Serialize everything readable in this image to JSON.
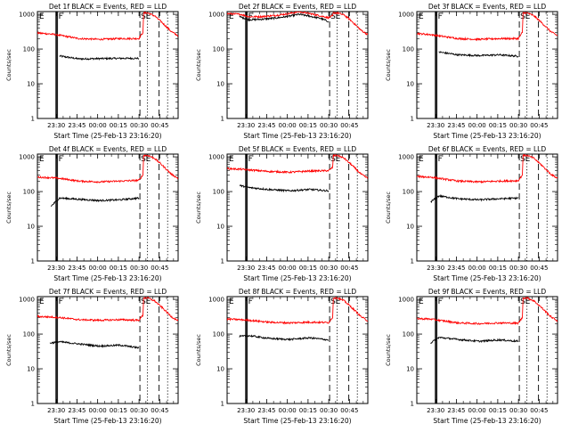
{
  "window": {
    "background": "#ffffff"
  },
  "colors": {
    "events": "#000000",
    "lld": "#ff0000",
    "axis": "#000000"
  },
  "common": {
    "ylabel": "Counts/sec",
    "xlabel": "Start Time (25-Feb-13 23:16:20)",
    "x_tick_labels": [
      "23:30",
      "23:45",
      "00:00",
      "00:15",
      "00:30",
      "00:45"
    ],
    "y_tick_labels": [
      "1",
      "10",
      "100",
      "1000"
    ],
    "marker_labels": [
      "E",
      "F",
      "S",
      "E"
    ]
  },
  "chart_data": [
    {
      "type": "line",
      "title": "Det 1f BLACK = Events, RED = LLD",
      "xlabel": "Start Time (25-Feb-13 23:16:20)",
      "ylabel": "Counts/sec",
      "x_unit": "minutes after 23:16:20",
      "x_ticks_minutes": [
        13.67,
        28.67,
        43.67,
        58.67,
        73.67,
        88.67
      ],
      "xlim_minutes": [
        0,
        102
      ],
      "yscale": "log",
      "ylim": [
        1,
        1200
      ],
      "series": [
        {
          "name": "Events",
          "color": "#000000",
          "x": [
            16,
            30,
            45,
            60,
            73.5
          ],
          "y": [
            63,
            52,
            53,
            54,
            54
          ]
        },
        {
          "name": "LLD",
          "color": "#ff0000",
          "x": [
            0,
            10,
            16,
            30,
            45,
            60,
            73.5,
            76.5,
            77,
            80,
            85,
            90,
            94,
            97,
            102
          ],
          "y": [
            290,
            270,
            250,
            200,
            190,
            200,
            200,
            300,
            1100,
            1100,
            900,
            600,
            420,
            320,
            240
          ]
        }
      ],
      "vlines_solid": [
        13.4,
        14.0,
        14.6
      ],
      "vlines_dashed": [
        74.3,
        88.2
      ],
      "vlines_dotted": [
        79.8,
        94.4
      ]
    },
    {
      "type": "line",
      "title": "Det 2f BLACK = Events, RED = LLD",
      "xlabel": "Start Time (25-Feb-13 23:16:20)",
      "ylabel": "Counts/sec",
      "x_unit": "minutes after 23:16:20",
      "x_ticks_minutes": [
        13.67,
        28.67,
        43.67,
        58.67,
        73.67,
        88.67
      ],
      "xlim_minutes": [
        0,
        102
      ],
      "yscale": "log",
      "ylim": [
        1,
        1200
      ],
      "series": [
        {
          "name": "Events",
          "color": "#000000",
          "x": [
            9,
            16,
            25,
            35,
            45,
            52,
            60,
            68,
            73.5
          ],
          "y": [
            850,
            700,
            720,
            780,
            880,
            1000,
            880,
            760,
            620
          ]
        },
        {
          "name": "LLD",
          "color": "#ff0000",
          "x": [
            0,
            10,
            16,
            25,
            35,
            45,
            52,
            60,
            68,
            73.5,
            76.5,
            77,
            80,
            85,
            90,
            94,
            97,
            102
          ],
          "y": [
            1050,
            1000,
            850,
            860,
            930,
            1050,
            1200,
            1050,
            900,
            800,
            900,
            1100,
            1100,
            950,
            650,
            460,
            350,
            260
          ]
        }
      ],
      "vlines_solid": [
        13.4,
        14.0,
        14.6
      ],
      "vlines_dashed": [
        74.3,
        88.2
      ],
      "vlines_dotted": [
        79.8,
        94.4
      ]
    },
    {
      "type": "line",
      "title": "Det 3f BLACK = Events, RED = LLD",
      "xlabel": "Start Time (25-Feb-13 23:16:20)",
      "ylabel": "Counts/sec",
      "x_unit": "minutes after 23:16:20",
      "x_ticks_minutes": [
        13.67,
        28.67,
        43.67,
        58.67,
        73.67,
        88.67
      ],
      "xlim_minutes": [
        0,
        102
      ],
      "yscale": "log",
      "ylim": [
        1,
        1200
      ],
      "series": [
        {
          "name": "Events",
          "color": "#000000",
          "x": [
            16,
            30,
            45,
            60,
            73.5
          ],
          "y": [
            82,
            68,
            65,
            68,
            62
          ]
        },
        {
          "name": "LLD",
          "color": "#ff0000",
          "x": [
            0,
            10,
            16,
            30,
            45,
            60,
            73.5,
            76.5,
            77,
            80,
            85,
            90,
            94,
            97,
            102
          ],
          "y": [
            280,
            260,
            240,
            200,
            190,
            200,
            200,
            300,
            1100,
            1100,
            900,
            600,
            420,
            320,
            240
          ]
        }
      ],
      "vlines_solid": [
        13.4,
        14.0,
        14.6
      ],
      "vlines_dashed": [
        74.3,
        88.2
      ],
      "vlines_dotted": [
        79.8,
        94.4
      ]
    },
    {
      "type": "line",
      "title": "Det 4f BLACK = Events, RED = LLD",
      "xlabel": "Start Time (25-Feb-13 23:16:20)",
      "ylabel": "Counts/sec",
      "x_unit": "minutes after 23:16:20",
      "x_ticks_minutes": [
        13.67,
        28.67,
        43.67,
        58.67,
        73.67,
        88.67
      ],
      "xlim_minutes": [
        0,
        102
      ],
      "yscale": "log",
      "ylim": [
        1,
        1200
      ],
      "series": [
        {
          "name": "Events",
          "color": "#000000",
          "x": [
            10,
            16,
            30,
            45,
            60,
            73.5
          ],
          "y": [
            38,
            65,
            60,
            55,
            58,
            65
          ]
        },
        {
          "name": "LLD",
          "color": "#ff0000",
          "x": [
            0,
            10,
            16,
            30,
            45,
            60,
            73.5,
            76.5,
            77,
            80,
            85,
            90,
            94,
            97,
            102
          ],
          "y": [
            260,
            250,
            240,
            200,
            190,
            200,
            210,
            300,
            1100,
            1100,
            900,
            600,
            420,
            320,
            240
          ]
        }
      ],
      "vlines_solid": [
        13.4,
        14.0,
        14.6
      ],
      "vlines_dashed": [
        74.3,
        88.2
      ],
      "vlines_dotted": [
        79.8,
        94.4
      ]
    },
    {
      "type": "line",
      "title": "Det 5f BLACK = Events, RED = LLD",
      "xlabel": "Start Time (25-Feb-13 23:16:20)",
      "ylabel": "Counts/sec",
      "x_unit": "minutes after 23:16:20",
      "x_ticks_minutes": [
        13.67,
        28.67,
        43.67,
        58.67,
        73.67,
        88.67
      ],
      "xlim_minutes": [
        0,
        102
      ],
      "yscale": "log",
      "ylim": [
        1,
        1200
      ],
      "series": [
        {
          "name": "Events",
          "color": "#000000",
          "x": [
            9,
            16,
            30,
            45,
            60,
            73.5
          ],
          "y": [
            150,
            130,
            115,
            105,
            115,
            105
          ]
        },
        {
          "name": "LLD",
          "color": "#ff0000",
          "x": [
            0,
            10,
            16,
            30,
            45,
            60,
            73.5,
            76.5,
            77,
            80,
            85,
            90,
            94,
            97,
            102
          ],
          "y": [
            460,
            440,
            420,
            380,
            360,
            390,
            400,
            500,
            1100,
            1100,
            900,
            600,
            420,
            320,
            240
          ]
        }
      ],
      "vlines_solid": [
        13.4,
        14.0,
        14.6
      ],
      "vlines_dashed": [
        74.3,
        88.2
      ],
      "vlines_dotted": [
        79.8,
        94.4
      ]
    },
    {
      "type": "line",
      "title": "Det 6f BLACK = Events, RED = LLD",
      "xlabel": "Start Time (25-Feb-13 23:16:20)",
      "ylabel": "Counts/sec",
      "x_unit": "minutes after 23:16:20",
      "x_ticks_minutes": [
        13.67,
        28.67,
        43.67,
        58.67,
        73.67,
        88.67
      ],
      "xlim_minutes": [
        0,
        102
      ],
      "yscale": "log",
      "ylim": [
        1,
        1200
      ],
      "series": [
        {
          "name": "Events",
          "color": "#000000",
          "x": [
            10,
            16,
            30,
            45,
            60,
            73.5
          ],
          "y": [
            50,
            75,
            62,
            58,
            62,
            65
          ]
        },
        {
          "name": "LLD",
          "color": "#ff0000",
          "x": [
            0,
            10,
            16,
            30,
            45,
            60,
            73.5,
            76.5,
            77,
            80,
            85,
            90,
            94,
            97,
            102
          ],
          "y": [
            270,
            260,
            240,
            200,
            190,
            200,
            205,
            300,
            1100,
            1100,
            900,
            600,
            420,
            320,
            240
          ]
        }
      ],
      "vlines_solid": [
        13.4,
        14.0,
        14.6
      ],
      "vlines_dashed": [
        74.3,
        88.2
      ],
      "vlines_dotted": [
        79.8,
        94.4
      ]
    },
    {
      "type": "line",
      "title": "Det 7f BLACK = Events, RED = LLD",
      "xlabel": "Start Time (25-Feb-13 23:16:20)",
      "ylabel": "Counts/sec",
      "x_unit": "minutes after 23:16:20",
      "x_ticks_minutes": [
        13.67,
        28.67,
        43.67,
        58.67,
        73.67,
        88.67
      ],
      "xlim_minutes": [
        0,
        102
      ],
      "yscale": "log",
      "ylim": [
        1,
        1200
      ],
      "series": [
        {
          "name": "Events",
          "color": "#000000",
          "x": [
            9,
            16,
            30,
            45,
            60,
            73.5
          ],
          "y": [
            55,
            60,
            52,
            45,
            48,
            40
          ]
        },
        {
          "name": "LLD",
          "color": "#ff0000",
          "x": [
            0,
            10,
            16,
            30,
            45,
            60,
            73.5,
            76.5,
            77,
            80,
            85,
            90,
            94,
            97,
            102
          ],
          "y": [
            320,
            310,
            300,
            260,
            250,
            260,
            250,
            350,
            1100,
            1100,
            900,
            600,
            420,
            320,
            240
          ]
        }
      ],
      "vlines_solid": [
        13.4,
        14.0,
        14.6
      ],
      "vlines_dashed": [
        74.3,
        88.2
      ],
      "vlines_dotted": [
        79.8,
        94.4
      ]
    },
    {
      "type": "line",
      "title": "Det 8f BLACK = Events, RED = LLD",
      "xlabel": "Start Time (25-Feb-13 23:16:20)",
      "ylabel": "Counts/sec",
      "x_unit": "minutes after 23:16:20",
      "x_ticks_minutes": [
        13.67,
        28.67,
        43.67,
        58.67,
        73.67,
        88.67
      ],
      "xlim_minutes": [
        0,
        102
      ],
      "yscale": "log",
      "ylim": [
        1,
        1200
      ],
      "series": [
        {
          "name": "Events",
          "color": "#000000",
          "x": [
            9,
            16,
            30,
            45,
            60,
            73.5
          ],
          "y": [
            85,
            90,
            75,
            70,
            78,
            68
          ]
        },
        {
          "name": "LLD",
          "color": "#ff0000",
          "x": [
            0,
            10,
            16,
            30,
            45,
            60,
            73.5,
            76.5,
            77,
            80,
            85,
            90,
            94,
            97,
            102
          ],
          "y": [
            270,
            260,
            250,
            220,
            210,
            220,
            215,
            300,
            1100,
            1100,
            900,
            600,
            420,
            320,
            240
          ]
        }
      ],
      "vlines_solid": [
        13.4,
        14.0,
        14.6
      ],
      "vlines_dashed": [
        74.3,
        88.2
      ],
      "vlines_dotted": [
        79.8,
        94.4
      ]
    },
    {
      "type": "line",
      "title": "Det 9f BLACK = Events, RED = LLD",
      "xlabel": "Start Time (25-Feb-13 23:16:20)",
      "ylabel": "Counts/sec",
      "x_unit": "minutes after 23:16:20",
      "x_ticks_minutes": [
        13.67,
        28.67,
        43.67,
        58.67,
        73.67,
        88.67
      ],
      "xlim_minutes": [
        0,
        102
      ],
      "yscale": "log",
      "ylim": [
        1,
        1200
      ],
      "series": [
        {
          "name": "Events",
          "color": "#000000",
          "x": [
            10,
            16,
            30,
            45,
            60,
            73.5
          ],
          "y": [
            55,
            80,
            70,
            62,
            68,
            62
          ]
        },
        {
          "name": "LLD",
          "color": "#ff0000",
          "x": [
            0,
            10,
            16,
            30,
            45,
            60,
            73.5,
            76.5,
            77,
            80,
            85,
            90,
            94,
            97,
            102
          ],
          "y": [
            280,
            270,
            250,
            210,
            200,
            210,
            205,
            300,
            1100,
            1100,
            900,
            600,
            420,
            320,
            240
          ]
        }
      ],
      "vlines_solid": [
        13.4,
        14.0,
        14.6
      ],
      "vlines_dashed": [
        74.3,
        88.2
      ],
      "vlines_dotted": [
        79.8,
        94.4
      ]
    }
  ]
}
